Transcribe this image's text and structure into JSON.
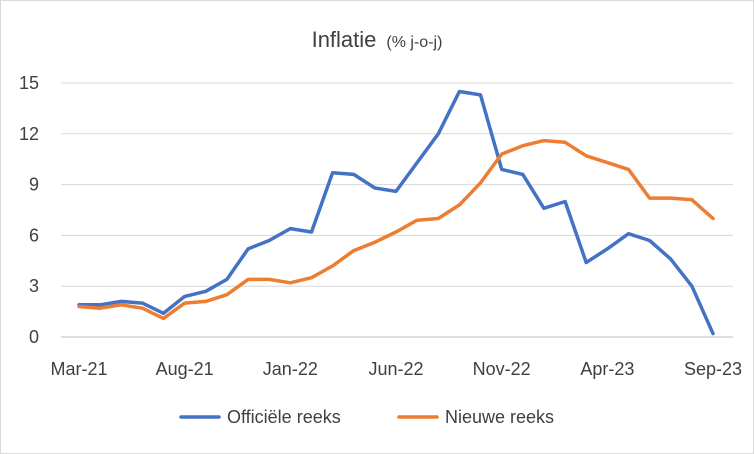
{
  "chart_data": {
    "type": "line",
    "title": "Inflatie",
    "subtitle": "(% j-o-j)",
    "xlabel": "",
    "ylabel": "",
    "ylim": [
      0,
      15
    ],
    "y_ticks": [
      0,
      3,
      6,
      9,
      12,
      15
    ],
    "grid": true,
    "legend": "bottom",
    "x": [
      "Mar-21",
      "Apr-21",
      "May-21",
      "Jun-21",
      "Jul-21",
      "Aug-21",
      "Sep-21",
      "Oct-21",
      "Nov-21",
      "Dec-21",
      "Jan-22",
      "Feb-22",
      "Mar-22",
      "Apr-22",
      "May-22",
      "Jun-22",
      "Jul-22",
      "Aug-22",
      "Sep-22",
      "Oct-22",
      "Nov-22",
      "Dec-22",
      "Jan-23",
      "Feb-23",
      "Mar-23",
      "Apr-23",
      "May-23",
      "Jun-23",
      "Jul-23",
      "Aug-23",
      "Sep-23"
    ],
    "x_tick_labels": [
      "Mar-21",
      "Aug-21",
      "Jan-22",
      "Jun-22",
      "Nov-22",
      "Apr-23",
      "Sep-23"
    ],
    "series": [
      {
        "name": "Officiële reeks",
        "color": "#4472c4",
        "values": [
          1.9,
          1.9,
          2.1,
          2.0,
          1.4,
          2.4,
          2.7,
          3.4,
          5.2,
          5.7,
          6.4,
          6.2,
          9.7,
          9.6,
          8.8,
          8.6,
          10.3,
          12.0,
          14.5,
          14.3,
          9.9,
          9.6,
          7.6,
          8.0,
          4.4,
          5.2,
          6.1,
          5.7,
          4.6,
          3.0,
          0.2
        ]
      },
      {
        "name": "Nieuwe reeks",
        "color": "#ed7d31",
        "values": [
          1.8,
          1.7,
          1.9,
          1.7,
          1.1,
          2.0,
          2.1,
          2.5,
          3.4,
          3.4,
          3.2,
          3.5,
          4.2,
          5.1,
          5.6,
          6.2,
          6.9,
          7.0,
          7.8,
          9.1,
          10.8,
          11.3,
          11.6,
          11.5,
          10.7,
          10.3,
          9.9,
          8.2,
          8.2,
          8.1,
          7.0
        ]
      }
    ]
  }
}
